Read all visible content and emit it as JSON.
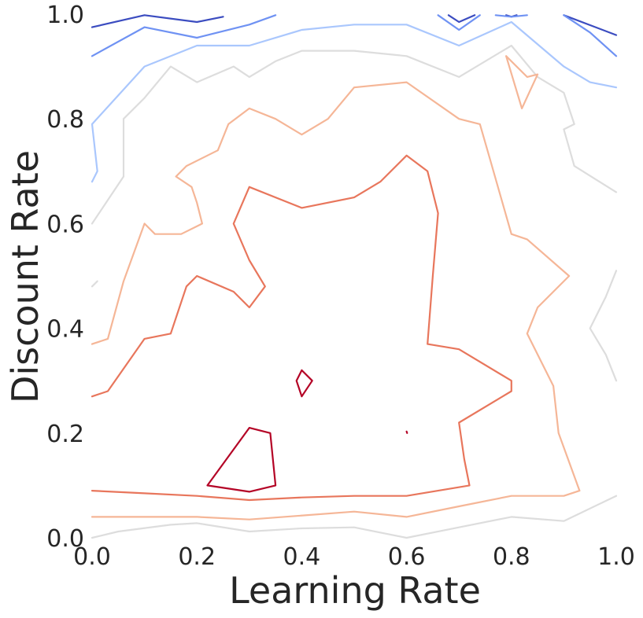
{
  "chart_data": {
    "type": "contour",
    "title": "",
    "xlabel": "Learning Rate",
    "ylabel": "Discount Rate",
    "xlim": [
      0.0,
      1.0
    ],
    "ylim": [
      0.0,
      1.0
    ],
    "grid": false,
    "legend": "none",
    "x_ticks": [
      "0.0",
      "0.2",
      "0.4",
      "0.6",
      "0.8",
      "1.0"
    ],
    "y_ticks": [
      "0.0",
      "0.2",
      "0.4",
      "0.6",
      "0.8",
      "1.0"
    ],
    "colormap": "coolwarm",
    "levels": [
      {
        "level": 1,
        "color": "#3b4cc0",
        "paths": [
          [
            [
              0.0,
              0.975
            ],
            [
              0.1,
              0.998
            ],
            [
              0.2,
              0.985
            ],
            [
              0.25,
              0.995
            ]
          ],
          [
            [
              0.68,
              0.998
            ],
            [
              0.7,
              0.985
            ],
            [
              0.73,
              0.998
            ]
          ],
          [
            [
              0.79,
              0.998
            ],
            [
              0.8,
              0.995
            ],
            [
              0.81,
              0.998
            ]
          ],
          [
            [
              0.9,
              0.998
            ],
            [
              1.0,
              0.96
            ]
          ]
        ]
      },
      {
        "level": 2,
        "color": "#6f92f3",
        "paths": [
          [
            [
              0.0,
              0.92
            ],
            [
              0.1,
              0.975
            ],
            [
              0.2,
              0.955
            ],
            [
              0.3,
              0.98
            ],
            [
              0.35,
              0.998
            ]
          ],
          [
            [
              0.66,
              0.998
            ],
            [
              0.7,
              0.97
            ],
            [
              0.74,
              0.998
            ]
          ],
          [
            [
              0.77,
              0.998
            ],
            [
              0.8,
              0.995
            ],
            [
              0.83,
              0.998
            ]
          ],
          [
            [
              0.9,
              0.998
            ],
            [
              0.95,
              0.965
            ],
            [
              1.0,
              0.92
            ]
          ]
        ]
      },
      {
        "level": 3,
        "color": "#aac7fd",
        "paths": [
          [
            [
              0.0,
              0.68
            ],
            [
              0.01,
              0.7
            ],
            [
              0.0,
              0.79
            ],
            [
              0.1,
              0.9
            ],
            [
              0.2,
              0.94
            ],
            [
              0.3,
              0.94
            ],
            [
              0.4,
              0.97
            ],
            [
              0.5,
              0.98
            ],
            [
              0.6,
              0.98
            ],
            [
              0.7,
              0.94
            ],
            [
              0.8,
              0.985
            ],
            [
              0.9,
              0.9
            ],
            [
              0.95,
              0.87
            ],
            [
              1.0,
              0.86
            ]
          ]
        ]
      },
      {
        "level": 4,
        "color": "#dddddd",
        "paths": [
          [
            [
              0.0,
              0.6
            ],
            [
              0.06,
              0.69
            ],
            [
              0.06,
              0.8
            ],
            [
              0.1,
              0.84
            ],
            [
              0.15,
              0.9
            ],
            [
              0.2,
              0.87
            ],
            [
              0.27,
              0.9
            ],
            [
              0.3,
              0.88
            ],
            [
              0.35,
              0.91
            ],
            [
              0.4,
              0.93
            ],
            [
              0.5,
              0.93
            ],
            [
              0.6,
              0.92
            ],
            [
              0.7,
              0.88
            ],
            [
              0.8,
              0.94
            ],
            [
              0.85,
              0.88
            ],
            [
              0.9,
              0.85
            ],
            [
              0.92,
              0.79
            ],
            [
              0.9,
              0.78
            ],
            [
              0.92,
              0.71
            ],
            [
              1.0,
              0.66
            ]
          ],
          [
            [
              0.0,
              0.48
            ],
            [
              0.01,
              0.49
            ]
          ],
          [
            [
              1.0,
              0.51
            ],
            [
              0.98,
              0.46
            ],
            [
              0.95,
              0.4
            ],
            [
              0.98,
              0.35
            ],
            [
              1.0,
              0.3
            ]
          ],
          [
            [
              0.0,
              0.0
            ],
            [
              0.05,
              0.012
            ],
            [
              0.15,
              0.025
            ],
            [
              0.2,
              0.028
            ],
            [
              0.3,
              0.012
            ],
            [
              0.4,
              0.018
            ],
            [
              0.5,
              0.02
            ],
            [
              0.6,
              0.0
            ],
            [
              0.7,
              0.02
            ],
            [
              0.8,
              0.04
            ],
            [
              0.9,
              0.032
            ],
            [
              1.0,
              0.08
            ]
          ]
        ]
      },
      {
        "level": 5,
        "color": "#f5b697",
        "paths": [
          [
            [
              0.0,
              0.37
            ],
            [
              0.03,
              0.38
            ],
            [
              0.06,
              0.49
            ],
            [
              0.1,
              0.6
            ],
            [
              0.12,
              0.58
            ],
            [
              0.17,
              0.58
            ],
            [
              0.21,
              0.6
            ],
            [
              0.2,
              0.64
            ],
            [
              0.19,
              0.67
            ],
            [
              0.16,
              0.69
            ],
            [
              0.18,
              0.71
            ],
            [
              0.24,
              0.74
            ],
            [
              0.26,
              0.79
            ],
            [
              0.3,
              0.82
            ],
            [
              0.35,
              0.8
            ],
            [
              0.4,
              0.77
            ],
            [
              0.45,
              0.8
            ],
            [
              0.5,
              0.86
            ],
            [
              0.6,
              0.87
            ],
            [
              0.7,
              0.8
            ],
            [
              0.74,
              0.79
            ],
            [
              0.76,
              0.72
            ],
            [
              0.8,
              0.58
            ],
            [
              0.83,
              0.57
            ],
            [
              0.91,
              0.5
            ],
            [
              0.85,
              0.44
            ],
            [
              0.83,
              0.39
            ],
            [
              0.88,
              0.29
            ],
            [
              0.89,
              0.2
            ],
            [
              0.93,
              0.09
            ],
            [
              0.9,
              0.08
            ],
            [
              0.8,
              0.08
            ],
            [
              0.7,
              0.06
            ],
            [
              0.6,
              0.04
            ],
            [
              0.5,
              0.05
            ],
            [
              0.3,
              0.035
            ],
            [
              0.2,
              0.04
            ],
            [
              0.1,
              0.04
            ],
            [
              0.0,
              0.04
            ]
          ],
          [
            [
              0.79,
              0.92
            ],
            [
              0.83,
              0.88
            ],
            [
              0.85,
              0.885
            ],
            [
              0.82,
              0.82
            ],
            [
              0.79,
              0.92
            ]
          ]
        ]
      },
      {
        "level": 6,
        "color": "#e8765c",
        "paths": [
          [
            [
              0.0,
              0.27
            ],
            [
              0.03,
              0.28
            ],
            [
              0.1,
              0.38
            ],
            [
              0.15,
              0.39
            ],
            [
              0.18,
              0.48
            ],
            [
              0.2,
              0.5
            ],
            [
              0.27,
              0.47
            ],
            [
              0.3,
              0.44
            ],
            [
              0.33,
              0.48
            ],
            [
              0.3,
              0.53
            ],
            [
              0.27,
              0.6
            ],
            [
              0.3,
              0.67
            ],
            [
              0.4,
              0.63
            ],
            [
              0.5,
              0.65
            ],
            [
              0.55,
              0.68
            ],
            [
              0.6,
              0.73
            ],
            [
              0.64,
              0.7
            ],
            [
              0.66,
              0.62
            ],
            [
              0.65,
              0.5
            ],
            [
              0.64,
              0.37
            ],
            [
              0.7,
              0.36
            ],
            [
              0.8,
              0.3
            ],
            [
              0.8,
              0.28
            ],
            [
              0.7,
              0.22
            ],
            [
              0.71,
              0.15
            ],
            [
              0.72,
              0.1
            ],
            [
              0.6,
              0.08
            ],
            [
              0.5,
              0.08
            ],
            [
              0.4,
              0.077
            ],
            [
              0.3,
              0.072
            ],
            [
              0.2,
              0.08
            ],
            [
              0.1,
              0.085
            ],
            [
              0.0,
              0.09
            ]
          ]
        ]
      },
      {
        "level": 7,
        "color": "#b40426",
        "paths": [
          [
            [
              0.22,
              0.1
            ],
            [
              0.3,
              0.21
            ],
            [
              0.34,
              0.2
            ],
            [
              0.35,
              0.1
            ],
            [
              0.3,
              0.088
            ],
            [
              0.22,
              0.1
            ]
          ],
          [
            [
              0.4,
              0.32
            ],
            [
              0.42,
              0.3
            ],
            [
              0.4,
              0.27
            ],
            [
              0.39,
              0.3
            ],
            [
              0.4,
              0.32
            ]
          ],
          [
            [
              0.6,
              0.203
            ],
            [
              0.601,
              0.2
            ]
          ]
        ]
      }
    ]
  }
}
